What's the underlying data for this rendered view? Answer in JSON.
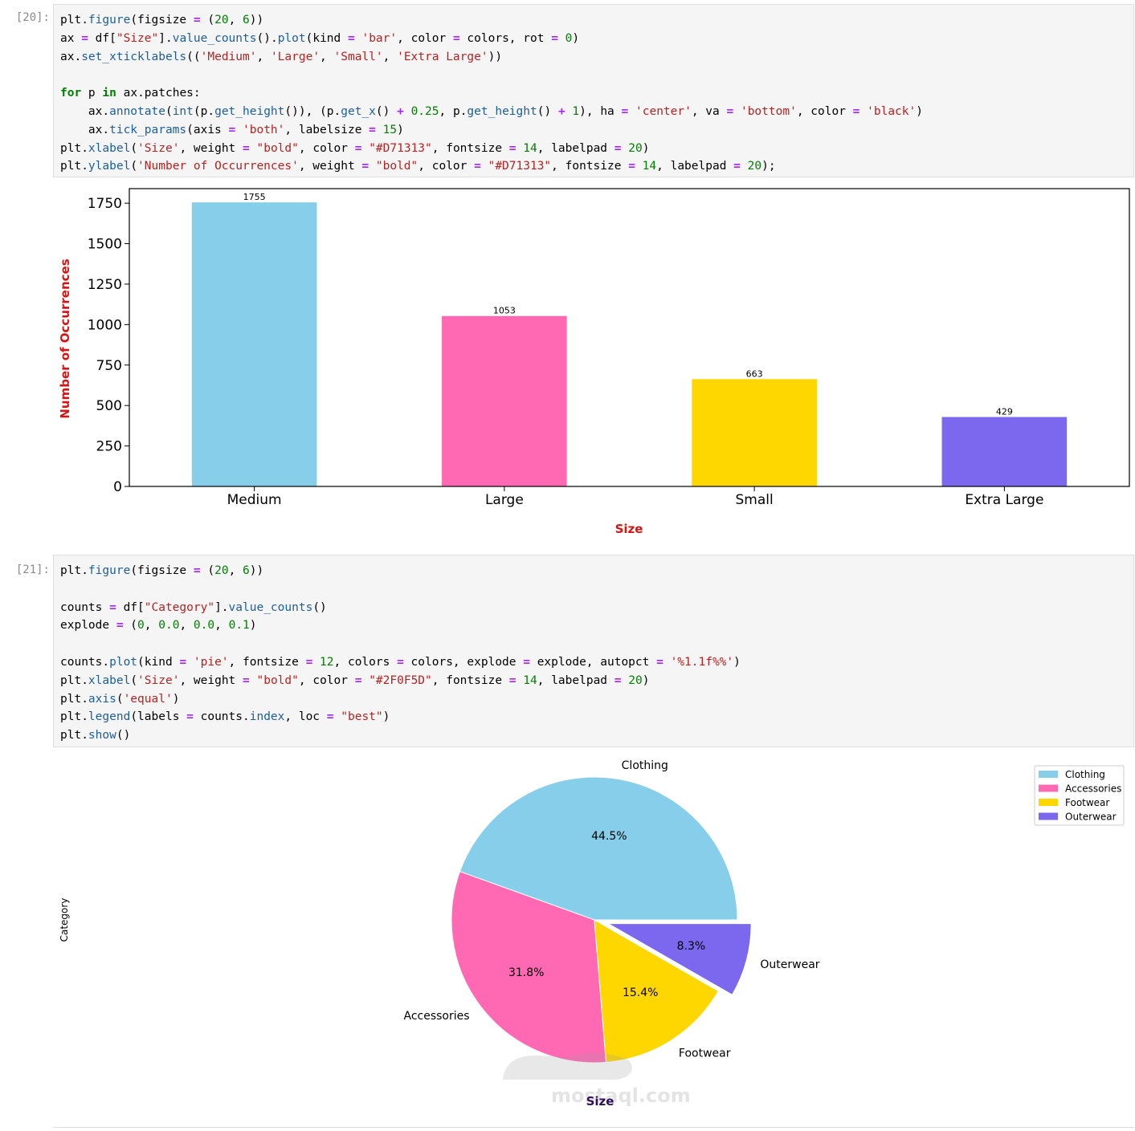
{
  "cells": [
    {
      "prompt": "[20]:",
      "code_lines": [
        "plt.figure(figsize = (20, 6))",
        "ax = df[\"Size\"].value_counts().plot(kind = 'bar', color = colors, rot = 0)",
        "ax.set_xticklabels(('Medium', 'Large', 'Small', 'Extra Large'))",
        "",
        "for p in ax.patches:",
        "    ax.annotate(int(p.get_height()), (p.get_x() + 0.25, p.get_height() + 1), ha = 'center', va = 'bottom', color = 'black')",
        "    ax.tick_params(axis = 'both', labelsize = 15)",
        "plt.xlabel('Size', weight = \"bold\", color = \"#D71313\", fontsize = 14, labelpad = 20)",
        "plt.ylabel('Number of Occurrences', weight = \"bold\", color = \"#D71313\", fontsize = 14, labelpad = 20);"
      ]
    },
    {
      "prompt": "[21]:",
      "code_lines": [
        "plt.figure(figsize = (20, 6))",
        "",
        "counts = df[\"Category\"].value_counts()",
        "explode = (0, 0.0, 0.0, 0.1)",
        "",
        "counts.plot(kind = 'pie', fontsize = 12, colors = colors, explode = explode, autopct = '%1.1f%%')",
        "plt.xlabel('Size', weight = \"bold\", color = \"#2F0F5D\", fontsize = 14, labelpad = 20)",
        "plt.axis('equal')",
        "plt.legend(labels = counts.index, loc = \"best\")",
        "plt.show()"
      ]
    }
  ],
  "chart_data": [
    {
      "type": "bar",
      "categories": [
        "Medium",
        "Large",
        "Small",
        "Extra Large"
      ],
      "values": [
        1755,
        1053,
        663,
        429
      ],
      "data_labels": [
        "1755",
        "1053",
        "663",
        "429"
      ],
      "colors": [
        "#87CEEB",
        "#FF69B4",
        "#FFD700",
        "#7B68EE"
      ],
      "xlabel": "Size",
      "ylabel": "Number of Occurrences",
      "label_color": "#D71313",
      "ylim": [
        0,
        1840
      ],
      "yticks": [
        0,
        250,
        500,
        750,
        1000,
        1250,
        1500,
        1750
      ],
      "grid": false
    },
    {
      "type": "pie",
      "labels": [
        "Clothing",
        "Accessories",
        "Footwear",
        "Outerwear"
      ],
      "values": [
        44.5,
        31.8,
        15.4,
        8.3
      ],
      "pct_labels": [
        "44.5%",
        "31.8%",
        "15.4%",
        "8.3%"
      ],
      "explode": [
        0,
        0,
        0,
        0.1
      ],
      "colors": [
        "#87CEEB",
        "#FF69B4",
        "#FFD700",
        "#7B68EE"
      ],
      "ylabel": "Category",
      "xlabel": "Size",
      "xlabel_color": "#2F0F5D",
      "legend": [
        "Clothing",
        "Accessories",
        "Footwear",
        "Outerwear"
      ],
      "legend_position": "top-right"
    }
  ],
  "watermark": {
    "text": "mostaql.com"
  }
}
